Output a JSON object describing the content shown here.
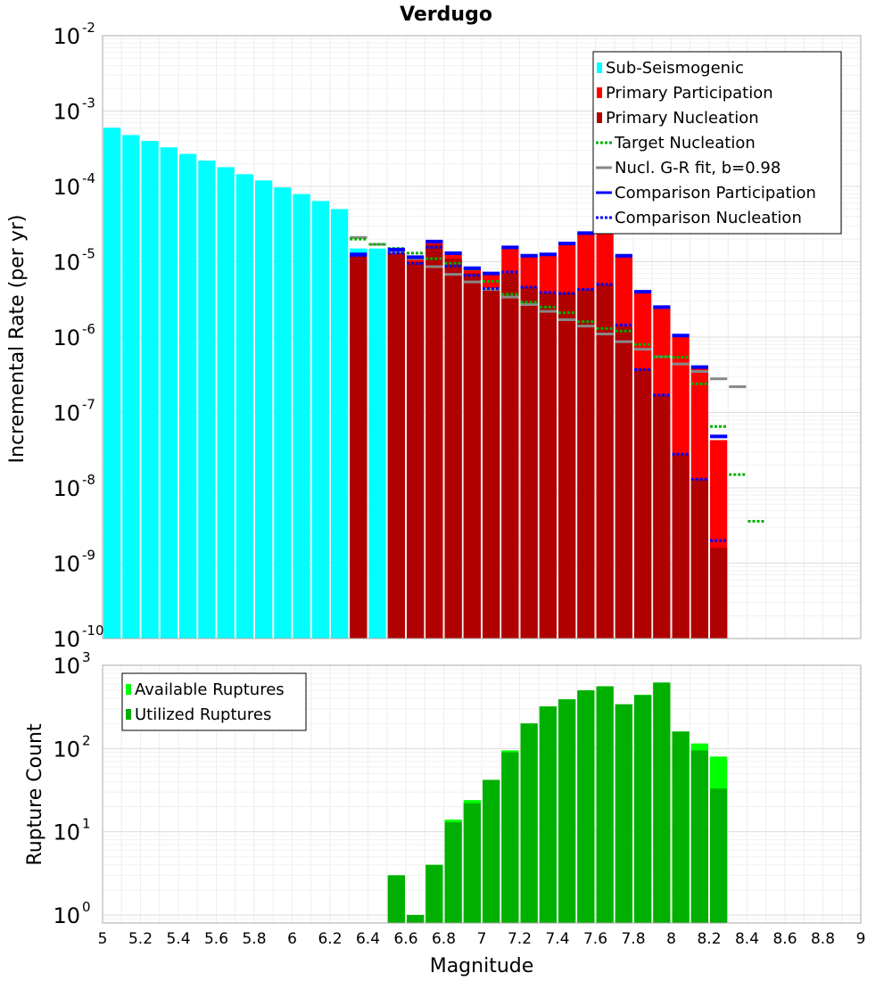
{
  "chart_data": [
    {
      "type": "bar",
      "title": "Verdugo",
      "xlabel": "",
      "ylabel": "Incremental Rate (per yr)",
      "yscale": "log",
      "ylim": [
        1e-10,
        0.01
      ],
      "xlim": [
        5,
        9
      ],
      "bin_width": 0.1,
      "y_ticks": [
        {
          "base": "10",
          "exp": "-10"
        },
        {
          "base": "10",
          "exp": "-9"
        },
        {
          "base": "10",
          "exp": "-8"
        },
        {
          "base": "10",
          "exp": "-7"
        },
        {
          "base": "10",
          "exp": "-6"
        },
        {
          "base": "10",
          "exp": "-5"
        },
        {
          "base": "10",
          "exp": "-4"
        },
        {
          "base": "10",
          "exp": "-3"
        },
        {
          "base": "10",
          "exp": "-2"
        }
      ],
      "legend": {
        "placement": "top-right",
        "entries": [
          {
            "label": "Sub-Seismogenic",
            "color": "#00ffff",
            "style": "bar"
          },
          {
            "label": "Primary Participation",
            "color": "#ff0000",
            "style": "bar"
          },
          {
            "label": "Primary Nucleation",
            "color": "#b00000",
            "style": "bar"
          },
          {
            "label": "Target Nucleation",
            "color": "#00b000",
            "style": "dotted"
          },
          {
            "label": "Nucl. G-R fit, b=0.98",
            "color": "#888888",
            "style": "solid"
          },
          {
            "label": "Comparison Participation",
            "color": "#0000ff",
            "style": "solid"
          },
          {
            "label": "Comparison Nucleation",
            "color": "#0000ff",
            "style": "dotted"
          }
        ]
      },
      "series": [
        {
          "name": "Sub-Seismogenic",
          "x": [
            5.05,
            5.15,
            5.25,
            5.35,
            5.45,
            5.55,
            5.65,
            5.75,
            5.85,
            5.95,
            6.05,
            6.15,
            6.25,
            6.35,
            6.45
          ],
          "values": [
            0.0006,
            0.00048,
            0.0004,
            0.00033,
            0.00027,
            0.00022,
            0.00018,
            0.000145,
            0.00012,
            9.7e-05,
            7.9e-05,
            6.4e-05,
            5e-05,
            1.5e-05,
            1.5e-05
          ]
        },
        {
          "name": "Primary Participation",
          "x": [
            6.35,
            6.55,
            6.65,
            6.75,
            6.85,
            6.95,
            7.05,
            7.15,
            7.25,
            7.35,
            7.45,
            7.55,
            7.65,
            7.75,
            7.85,
            7.95,
            8.05,
            8.15,
            8.25
          ],
          "values": [
            1.3e-05,
            1.4e-05,
            1.1e-05,
            1.8e-05,
            1.25e-05,
            8e-06,
            7e-06,
            1.5e-05,
            1.2e-05,
            1.2e-05,
            1.7e-05,
            2.4e-05,
            3e-05,
            1.2e-05,
            3.8e-06,
            2.4e-06,
            1e-06,
            3.8e-07,
            4.3e-08
          ]
        },
        {
          "name": "Primary Nucleation",
          "x": [
            6.35,
            6.55,
            6.65,
            6.75,
            6.85,
            6.95,
            7.05,
            7.15,
            7.25,
            7.35,
            7.45,
            7.55,
            7.65,
            7.75,
            7.85,
            7.95,
            8.05,
            8.15,
            8.25
          ],
          "values": [
            1.2e-05,
            1.3e-05,
            1e-05,
            1.7e-05,
            1.1e-05,
            7e-06,
            4.4e-06,
            7e-06,
            4.6e-06,
            3.8e-06,
            3.9e-06,
            4.3e-06,
            5e-06,
            1.4e-06,
            3.8e-07,
            1.7e-07,
            2.8e-08,
            1.3e-08,
            1.6e-09
          ]
        },
        {
          "name": "Target Nucleation",
          "x": [
            6.35,
            6.45,
            6.55,
            6.65,
            6.75,
            6.85,
            6.95,
            7.05,
            7.15,
            7.25,
            7.35,
            7.45,
            7.55,
            7.65,
            7.75,
            7.85,
            7.95,
            8.05,
            8.15,
            8.25,
            8.35,
            8.45
          ],
          "values": [
            2e-05,
            1.7e-05,
            1.5e-05,
            1.3e-05,
            1.1e-05,
            9.5e-06,
            8e-06,
            5.5e-06,
            3.7e-06,
            2.9e-06,
            2.5e-06,
            2.1e-06,
            1.6e-06,
            1.3e-06,
            1.2e-06,
            8e-07,
            5.5e-07,
            5.4e-07,
            2.4e-07,
            6.5e-08,
            1.5e-08,
            3.6e-09
          ]
        },
        {
          "name": "Nucl. G-R fit, b=0.98",
          "x": [
            6.35,
            6.45,
            6.55,
            6.65,
            6.75,
            6.85,
            6.95,
            7.05,
            7.15,
            7.25,
            7.35,
            7.45,
            7.55,
            7.65,
            7.75,
            7.85,
            7.95,
            8.05,
            8.15,
            8.25,
            8.35,
            8.45
          ],
          "values": [
            2.1e-05,
            1.7e-05,
            1.35e-05,
            1.1e-05,
            8.6e-06,
            6.8e-06,
            5.4e-06,
            4.3e-06,
            3.4e-06,
            2.7e-06,
            2.2e-06,
            1.7e-06,
            1.4e-06,
            1.1e-06,
            8.7e-07,
            6.9e-07,
            5.5e-07,
            4.4e-07,
            3.5e-07,
            2.8e-07,
            2.2e-07,
            0
          ]
        },
        {
          "name": "Comparison Participation",
          "x": [
            6.35,
            6.55,
            6.65,
            6.75,
            6.85,
            6.95,
            7.05,
            7.15,
            7.25,
            7.35,
            7.45,
            7.55,
            7.65,
            7.75,
            7.85,
            7.95,
            8.05,
            8.15,
            8.25
          ],
          "values": [
            1.25e-05,
            1.45e-05,
            1.15e-05,
            1.85e-05,
            1.3e-05,
            8.2e-06,
            7e-06,
            1.55e-05,
            1.2e-05,
            1.25e-05,
            1.75e-05,
            2.4e-05,
            3.1e-05,
            1.2e-05,
            4e-06,
            2.5e-06,
            1.05e-06,
            4e-07,
            4.8e-08
          ]
        },
        {
          "name": "Comparison Nucleation",
          "x": [
            6.35,
            6.55,
            6.65,
            6.75,
            6.85,
            6.95,
            7.05,
            7.15,
            7.25,
            7.35,
            7.45,
            7.55,
            7.65,
            7.75,
            7.85,
            7.95,
            8.05,
            8.15,
            8.25
          ],
          "values": [
            1.2e-05,
            1.3e-05,
            9.5e-06,
            1.55e-05,
            8.8e-06,
            6.6e-06,
            4.4e-06,
            7.3e-06,
            4.6e-06,
            3.9e-06,
            3.8e-06,
            4.3e-06,
            5e-06,
            1.45e-06,
            3.7e-07,
            1.7e-07,
            2.8e-08,
            1.3e-08,
            2e-09
          ]
        }
      ]
    },
    {
      "type": "bar",
      "title": "",
      "xlabel": "Magnitude",
      "ylabel": "Rupture Count",
      "yscale": "log",
      "ylim": [
        0.8,
        1000
      ],
      "xlim": [
        5,
        9
      ],
      "bin_width": 0.1,
      "x_ticks": [
        "5",
        "5.2",
        "5.4",
        "5.6",
        "5.8",
        "6",
        "6.2",
        "6.4",
        "6.6",
        "6.8",
        "7",
        "7.2",
        "7.4",
        "7.6",
        "7.8",
        "8",
        "8.2",
        "8.4",
        "8.6",
        "8.8",
        "9"
      ],
      "y_ticks": [
        {
          "base": "10",
          "exp": "0"
        },
        {
          "base": "10",
          "exp": "1"
        },
        {
          "base": "10",
          "exp": "2"
        },
        {
          "base": "10",
          "exp": "3"
        }
      ],
      "legend": {
        "placement": "top-left",
        "entries": [
          {
            "label": "Available Ruptures",
            "color": "#00ff00",
            "style": "bar"
          },
          {
            "label": "Utilized Ruptures",
            "color": "#00b000",
            "style": "bar"
          }
        ]
      },
      "series": [
        {
          "name": "Available Ruptures",
          "x": [
            6.55,
            6.65,
            6.75,
            6.85,
            6.95,
            7.05,
            7.15,
            7.25,
            7.35,
            7.45,
            7.55,
            7.65,
            7.75,
            7.85,
            7.95,
            8.05,
            8.15,
            8.25
          ],
          "values": [
            3,
            1,
            4,
            14,
            24,
            42,
            95,
            200,
            320,
            390,
            500,
            560,
            340,
            440,
            620,
            160,
            115,
            80
          ]
        },
        {
          "name": "Utilized Ruptures",
          "x": [
            6.55,
            6.65,
            6.75,
            6.85,
            6.95,
            7.05,
            7.15,
            7.25,
            7.35,
            7.45,
            7.55,
            7.65,
            7.75,
            7.85,
            7.95,
            8.05,
            8.15,
            8.25
          ],
          "values": [
            3,
            1,
            4,
            13,
            22,
            42,
            90,
            200,
            320,
            390,
            500,
            560,
            340,
            440,
            620,
            160,
            95,
            33
          ]
        }
      ]
    }
  ]
}
